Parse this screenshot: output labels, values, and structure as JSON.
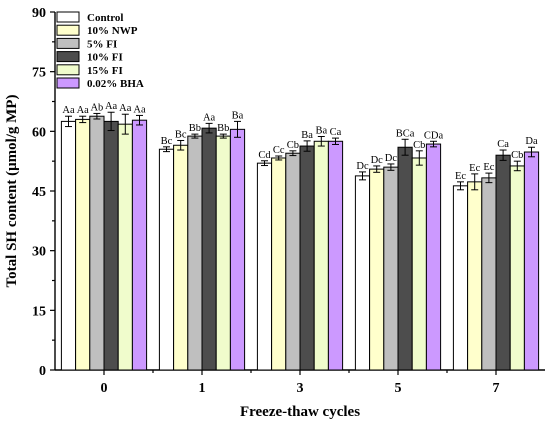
{
  "chart_data": {
    "type": "bar",
    "title": "",
    "xlabel": "Freeze-thaw cycles",
    "ylabel": "Total SH content (μmol/g MP)",
    "ylim": [
      0,
      90
    ],
    "yticks": [
      0,
      15,
      30,
      45,
      60,
      75,
      90
    ],
    "categories": [
      "0",
      "1",
      "3",
      "5",
      "7"
    ],
    "legend_position": "top-left",
    "grid": false,
    "series": [
      {
        "name": "Control",
        "color": "#ffffff",
        "values": [
          62.5,
          55.5,
          52.0,
          48.8,
          46.3
        ],
        "errors": [
          1.3,
          0.6,
          0.6,
          1.0,
          1.0
        ],
        "labels": [
          "Aa",
          "Bc",
          "Cd",
          "Dc",
          "Ec"
        ]
      },
      {
        "name": "10% NWP",
        "color": "#ffffcc",
        "values": [
          63.0,
          56.5,
          53.3,
          50.5,
          47.3
        ],
        "errors": [
          0.8,
          1.2,
          0.5,
          0.8,
          2.0
        ],
        "labels": [
          "Aa",
          "Bc",
          "Cc",
          "Dc",
          "Ec"
        ]
      },
      {
        "name": "5% FI",
        "color": "#bfbfbf",
        "values": [
          63.8,
          58.8,
          54.5,
          51.0,
          48.3
        ],
        "errors": [
          0.7,
          0.5,
          0.6,
          0.8,
          1.2
        ],
        "labels": [
          "Ab",
          "Bb",
          "Cb",
          "Dc",
          "Ec"
        ]
      },
      {
        "name": "10% FI",
        "color": "#4d4d4d",
        "values": [
          62.5,
          60.8,
          56.3,
          56.0,
          54.0
        ],
        "errors": [
          2.3,
          1.2,
          1.3,
          2.0,
          1.3
        ],
        "labels": [
          "Aa",
          "Aa",
          "Ba",
          "BCa",
          "Ca"
        ]
      },
      {
        "name": "15% FI",
        "color": "#f0fccc",
        "values": [
          61.8,
          58.8,
          57.5,
          53.3,
          51.3
        ],
        "errors": [
          2.5,
          0.5,
          1.2,
          1.8,
          1.2
        ],
        "labels": [
          "Aa",
          "Bb",
          "Ba",
          "Cb",
          "Cb"
        ]
      },
      {
        "name": "0.02% BHA",
        "color": "#cc99ff",
        "values": [
          62.8,
          60.5,
          57.5,
          56.8,
          54.8
        ],
        "errors": [
          1.2,
          2.0,
          0.8,
          0.7,
          1.2
        ],
        "labels": [
          "Aa",
          "Ba",
          "Ca",
          "CDa",
          "Da"
        ]
      }
    ]
  }
}
